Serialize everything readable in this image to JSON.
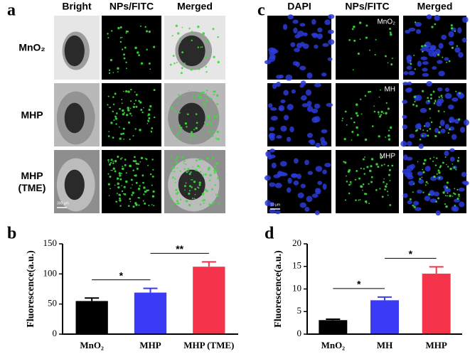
{
  "panels": {
    "a": "a",
    "b": "b",
    "c": "c",
    "d": "d"
  },
  "panel_a": {
    "columns": [
      "Bright",
      "NPs/FITC",
      "Merged"
    ],
    "rows": [
      "MnO₂",
      "MHP",
      "MHP (TME)"
    ],
    "scale_bar": "300 μm"
  },
  "panel_c": {
    "columns": [
      "DAPI",
      "NPs/FITC",
      "Merged"
    ],
    "rows": [
      "MnO₂",
      "MH",
      "MHP"
    ],
    "scale_bar": "10 μm"
  },
  "chart_data": [
    {
      "type": "bar",
      "y_label": "Fluorescence(a.u.)",
      "categories": [
        "MnO₂",
        "MHP",
        "MHP (TME)"
      ],
      "values": [
        55,
        69,
        112
      ],
      "errors": [
        5,
        7,
        8
      ],
      "colors": [
        "#000000",
        "#3b3bf5",
        "#f5334a"
      ],
      "ylim": [
        0,
        150
      ],
      "yticks": [
        0,
        50,
        100,
        150
      ],
      "annotations": [
        {
          "text": "*",
          "from": 0,
          "to": 1
        },
        {
          "text": "**",
          "from": 1,
          "to": 2
        }
      ]
    },
    {
      "type": "bar",
      "y_label": "Fluorescence(a.u.)",
      "categories": [
        "MnO₂",
        "MH",
        "MHP"
      ],
      "values": [
        3.1,
        7.5,
        13.4
      ],
      "errors": [
        0.2,
        0.7,
        1.5
      ],
      "colors": [
        "#000000",
        "#3b3bf5",
        "#f5334a"
      ],
      "ylim": [
        0,
        20
      ],
      "yticks": [
        0,
        5,
        10,
        15,
        20
      ],
      "annotations": [
        {
          "text": "*",
          "from": 0,
          "to": 1
        },
        {
          "text": "*",
          "from": 1,
          "to": 2
        }
      ]
    }
  ]
}
